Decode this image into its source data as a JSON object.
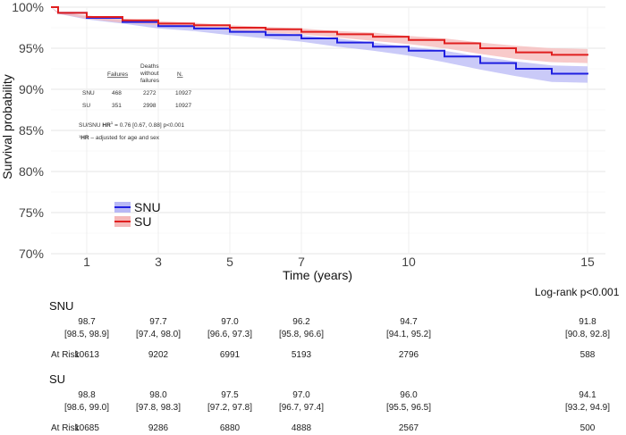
{
  "chart_data": {
    "type": "line",
    "title": "",
    "xlabel": "Time (years)",
    "ylabel": "Survival probability",
    "xlim": [
      0,
      15.5
    ],
    "ylim": [
      70,
      100
    ],
    "x_ticks": [
      1,
      3,
      5,
      7,
      10,
      15
    ],
    "y_ticks": [
      "70%",
      "75%",
      "80%",
      "85%",
      "90%",
      "95%",
      "100%"
    ],
    "y_tick_values": [
      70,
      75,
      80,
      85,
      90,
      95,
      100
    ],
    "legend": {
      "position": "left-middle",
      "entries": [
        "SNU",
        "SU"
      ]
    },
    "series": [
      {
        "name": "SNU",
        "color": "#1f1fe0",
        "band_color": "#b8b8f5",
        "x": [
          0,
          0.2,
          1,
          2,
          3,
          4,
          5,
          6,
          7,
          8,
          9,
          10,
          11,
          12,
          13,
          14,
          15
        ],
        "values": [
          100,
          99.3,
          98.7,
          98.2,
          97.7,
          97.4,
          97.0,
          96.6,
          96.2,
          95.7,
          95.2,
          94.7,
          94.0,
          93.2,
          92.5,
          91.9,
          91.8
        ],
        "lower": [
          100,
          99.2,
          98.5,
          98.0,
          97.4,
          97.1,
          96.6,
          96.2,
          95.8,
          95.2,
          94.7,
          94.1,
          93.3,
          92.4,
          91.6,
          90.9,
          90.8
        ],
        "upper": [
          100,
          99.4,
          98.9,
          98.4,
          98.0,
          97.7,
          97.3,
          97.0,
          96.6,
          96.2,
          95.7,
          95.2,
          94.7,
          94.0,
          93.4,
          92.9,
          92.8
        ]
      },
      {
        "name": "SU",
        "color": "#e01f1f",
        "band_color": "#f5b8b8",
        "x": [
          0,
          0.2,
          1,
          2,
          3,
          4,
          5,
          6,
          7,
          8,
          9,
          10,
          11,
          12,
          13,
          14,
          15
        ],
        "values": [
          100,
          99.3,
          98.8,
          98.4,
          98.0,
          97.8,
          97.5,
          97.3,
          97.0,
          96.7,
          96.4,
          96.0,
          95.6,
          95.0,
          94.5,
          94.2,
          94.1
        ],
        "lower": [
          100,
          99.2,
          98.6,
          98.1,
          97.8,
          97.5,
          97.2,
          96.9,
          96.7,
          96.3,
          95.9,
          95.5,
          95.0,
          94.3,
          93.7,
          93.3,
          93.2
        ],
        "upper": [
          100,
          99.4,
          99.0,
          98.6,
          98.3,
          98.1,
          97.8,
          97.6,
          97.4,
          97.1,
          96.9,
          96.5,
          96.2,
          95.7,
          95.3,
          95.0,
          94.9
        ]
      }
    ],
    "inset_table": {
      "headers": [
        "Failures",
        "Deaths without failures",
        "N"
      ],
      "header_lines": [
        [
          "Failures"
        ],
        [
          "Deaths",
          "without",
          "failures"
        ],
        [
          "N."
        ]
      ],
      "rows": [
        {
          "group": "SNU",
          "failures": "468",
          "deaths": "2272",
          "n": "10927"
        },
        {
          "group": "SU",
          "failures": "351",
          "deaths": "2998",
          "n": "10927"
        }
      ],
      "hr_prefix": "SU/SNU ",
      "hr_bold": "HR",
      "hr_sup": "1",
      "hr_rest": " = 0.76 [0.67, 0.88]  p<0.001",
      "footnote_sup": "1",
      "footnote_bold": "HR",
      "footnote_rest": " – adjusted for age and sex"
    }
  },
  "risk_table": {
    "logrank": "Log-rank p<0.001",
    "at_risk_label": "At Risk",
    "groups": [
      {
        "name": "SNU",
        "estimates": [
          "98.7",
          "97.7",
          "97.0",
          "96.2",
          "94.7",
          "91.8"
        ],
        "cis": [
          "[98.5, 98.9]",
          "[97.4, 98.0]",
          "[96.6, 97.3]",
          "[95.8, 96.6]",
          "[94.1, 95.2]",
          "[90.8, 92.8]"
        ],
        "at_risk": [
          "10613",
          "9202",
          "6991",
          "5193",
          "2796",
          "588"
        ]
      },
      {
        "name": "SU",
        "estimates": [
          "98.8",
          "98.0",
          "97.5",
          "97.0",
          "96.0",
          "94.1"
        ],
        "cis": [
          "[98.6, 99.0]",
          "[97.8, 98.3]",
          "[97.2, 97.8]",
          "[96.7, 97.4]",
          "[95.5, 96.5]",
          "[93.2, 94.9]"
        ],
        "at_risk": [
          "10685",
          "9286",
          "6880",
          "4888",
          "2567",
          "500"
        ]
      }
    ]
  }
}
